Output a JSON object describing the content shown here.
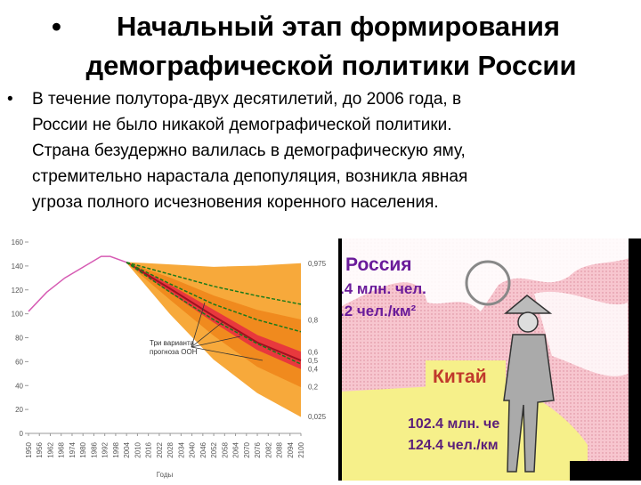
{
  "title": [
    "Начальный этап формирования",
    "демографической политики России"
  ],
  "body": [
    "В течение полутора-двух десятилетий, до 2006 года, в",
    "России не было никакой демографической политики.",
    "Страна безудержно валилась в демографическую яму,",
    "стремительно нарастала депопуляция, возникла явная",
    "угроза полного исчезновения коренного населения."
  ],
  "chart_data": {
    "type": "line",
    "xlabel": "Годы",
    "annotation": [
      "Три варианта",
      "прогноза ООН"
    ],
    "xlim": [
      1950,
      2100
    ],
    "xticks": [
      1950,
      1956,
      1962,
      1968,
      1974,
      1980,
      1986,
      1992,
      1998,
      2004,
      2010,
      2016,
      2022,
      2028,
      2034,
      2040,
      2046,
      2052,
      2058,
      2064,
      2070,
      2076,
      2082,
      2088,
      2094,
      2100
    ],
    "ylim": [
      0,
      160
    ],
    "yticks": [
      0,
      20,
      40,
      60,
      80,
      100,
      120,
      140,
      160
    ],
    "series": [
      {
        "name": "0,975",
        "color": "#f7a93b",
        "x": [
          2004,
          2028,
          2052,
          2076,
          2100
        ],
        "values": [
          143,
          141,
          139,
          140,
          142
        ]
      },
      {
        "name": "0,8",
        "color": "#f08a1e",
        "x": [
          2004,
          2028,
          2052,
          2076,
          2100
        ],
        "values": [
          143,
          130,
          115,
          103,
          95
        ]
      },
      {
        "name": "0,6",
        "color": "#e8383d",
        "x": [
          2004,
          2028,
          2052,
          2076,
          2100
        ],
        "values": [
          143,
          124,
          103,
          82,
          68
        ]
      },
      {
        "name": "0,5",
        "color": "#a01020",
        "x": [
          2004,
          2028,
          2052,
          2076,
          2100
        ],
        "values": [
          143,
          121,
          98,
          76,
          61
        ]
      },
      {
        "name": "0,4",
        "color": "#e8383d",
        "x": [
          2004,
          2028,
          2052,
          2076,
          2100
        ],
        "values": [
          143,
          118,
          93,
          70,
          54
        ]
      },
      {
        "name": "0,2",
        "color": "#f08a1e",
        "x": [
          2004,
          2028,
          2052,
          2076,
          2100
        ],
        "values": [
          143,
          112,
          82,
          56,
          39
        ]
      },
      {
        "name": "0,025",
        "color": "#f7a93b",
        "x": [
          2004,
          2028,
          2052,
          2076,
          2100
        ],
        "values": [
          143,
          100,
          62,
          34,
          14
        ]
      }
    ],
    "history": {
      "color": "#d65bb3",
      "x": [
        1950,
        1960,
        1970,
        1980,
        1990,
        1995,
        2004
      ],
      "values": [
        102,
        118,
        130,
        139,
        148,
        148,
        143
      ]
    },
    "un_variants": {
      "color": "#1a7a1a",
      "x": [
        2004,
        2028,
        2052,
        2076,
        2100
      ],
      "lines": [
        [
          143,
          133,
          123,
          115,
          108
        ],
        [
          143,
          125,
          108,
          95,
          85
        ],
        [
          143,
          118,
          95,
          75,
          58
        ]
      ]
    }
  },
  "map": {
    "russia": "Россия",
    "russia_pop": ".4 млн. чел.",
    "russia_density": ".2 чел./км²",
    "china": "Китай",
    "china_pop": "102.4 млн. че",
    "china_density": "124.4 чел./км"
  }
}
